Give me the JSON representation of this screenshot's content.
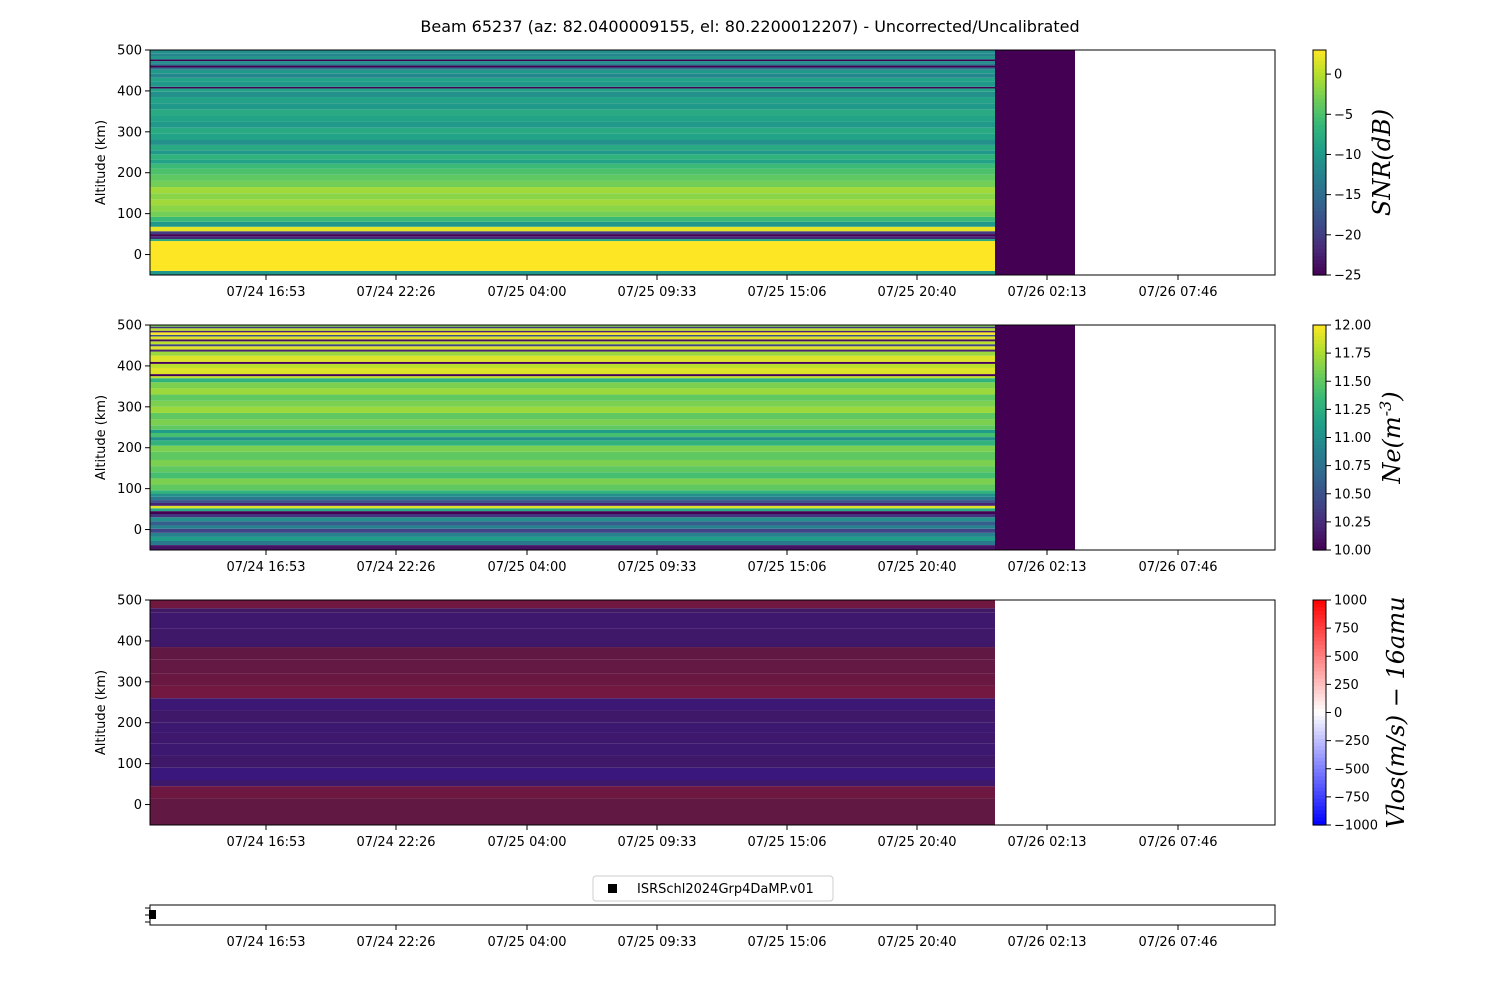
{
  "title": "Beam 65237 (az: 82.0400009155, el: 80.2200012207) - Uncorrected/Uncalibrated",
  "x_tick_labels": [
    "07/24 16:53",
    "07/24 22:26",
    "07/25 04:00",
    "07/25 09:33",
    "07/25 15:06",
    "07/25 20:40",
    "07/26 02:13",
    "07/26 07:46"
  ],
  "chart_data": [
    {
      "type": "heatmap",
      "name": "snr-panel",
      "ylabel": "Altitude (km)",
      "ylim": [
        -50,
        500
      ],
      "y_ticks": [
        0,
        100,
        200,
        300,
        400,
        500
      ],
      "colorbar": {
        "label": "SNR(dB)",
        "label_math": true,
        "colormap": "viridis",
        "range": [
          -25,
          3
        ],
        "ticks": [
          0,
          -5,
          -10,
          -15,
          -20,
          -25
        ],
        "tick_labels": [
          "0",
          "−5",
          "−10",
          "−15",
          "−20",
          "−25"
        ]
      },
      "bands": [
        {
          "y": [
            -50,
            -40
          ],
          "v": -10
        },
        {
          "y": [
            -40,
            33
          ],
          "v": 3
        },
        {
          "y": [
            33,
            38
          ],
          "v": -8
        },
        {
          "y": [
            38,
            45
          ],
          "v": -22
        },
        {
          "y": [
            45,
            50
          ],
          "v": -25
        },
        {
          "y": [
            50,
            57
          ],
          "v": -20
        },
        {
          "y": [
            57,
            68
          ],
          "v": 2
        },
        {
          "y": [
            68,
            80
          ],
          "v": -10
        },
        {
          "y": [
            80,
            92
          ],
          "v": -6
        },
        {
          "y": [
            92,
            105
          ],
          "v": -3
        },
        {
          "y": [
            105,
            120
          ],
          "v": -2
        },
        {
          "y": [
            120,
            135
          ],
          "v": -1
        },
        {
          "y": [
            135,
            150
          ],
          "v": -2
        },
        {
          "y": [
            150,
            165
          ],
          "v": -1
        },
        {
          "y": [
            165,
            180
          ],
          "v": -3
        },
        {
          "y": [
            180,
            195
          ],
          "v": -4
        },
        {
          "y": [
            195,
            210
          ],
          "v": -5
        },
        {
          "y": [
            210,
            222
          ],
          "v": -6
        },
        {
          "y": [
            222,
            232
          ],
          "v": -9
        },
        {
          "y": [
            232,
            245
          ],
          "v": -7
        },
        {
          "y": [
            245,
            255
          ],
          "v": -10
        },
        {
          "y": [
            255,
            268
          ],
          "v": -8
        },
        {
          "y": [
            268,
            280
          ],
          "v": -11
        },
        {
          "y": [
            280,
            295
          ],
          "v": -9
        },
        {
          "y": [
            295,
            310
          ],
          "v": -8
        },
        {
          "y": [
            310,
            325
          ],
          "v": -10
        },
        {
          "y": [
            325,
            340
          ],
          "v": -9
        },
        {
          "y": [
            340,
            355
          ],
          "v": -8
        },
        {
          "y": [
            355,
            370
          ],
          "v": -10
        },
        {
          "y": [
            370,
            385
          ],
          "v": -9
        },
        {
          "y": [
            385,
            398
          ],
          "v": -11
        },
        {
          "y": [
            398,
            406
          ],
          "v": -9
        },
        {
          "y": [
            406,
            410
          ],
          "v": -25
        },
        {
          "y": [
            410,
            422
          ],
          "v": -10
        },
        {
          "y": [
            422,
            432
          ],
          "v": -9
        },
        {
          "y": [
            432,
            442
          ],
          "v": -12
        },
        {
          "y": [
            442,
            452
          ],
          "v": -10
        },
        {
          "y": [
            452,
            457
          ],
          "v": -14
        },
        {
          "y": [
            457,
            462
          ],
          "v": -25
        },
        {
          "y": [
            462,
            468
          ],
          "v": -13
        },
        {
          "y": [
            468,
            473
          ],
          "v": -11
        },
        {
          "y": [
            473,
            477
          ],
          "v": -25
        },
        {
          "y": [
            477,
            484
          ],
          "v": -10
        },
        {
          "y": [
            484,
            492
          ],
          "v": -12
        },
        {
          "y": [
            492,
            500
          ],
          "v": -11
        }
      ],
      "filler_value": -25
    },
    {
      "type": "heatmap",
      "name": "ne-panel",
      "ylabel": "Altitude (km)",
      "ylim": [
        -50,
        500
      ],
      "y_ticks": [
        0,
        100,
        200,
        300,
        400,
        500
      ],
      "colorbar": {
        "label": "Ne(m^{-3})",
        "label_math": true,
        "colormap": "viridis",
        "range": [
          10,
          12
        ],
        "ticks": [
          12,
          11.75,
          11.5,
          11.25,
          11,
          10.75,
          10.5,
          10.25,
          10
        ],
        "tick_labels": [
          "12.00",
          "11.75",
          "11.50",
          "11.25",
          "11.00",
          "10.75",
          "10.50",
          "10.25",
          "10.00"
        ]
      },
      "bands": [
        {
          "y": [
            -50,
            -38
          ],
          "v": 10.1
        },
        {
          "y": [
            -38,
            -28
          ],
          "v": 10.8
        },
        {
          "y": [
            -28,
            -18
          ],
          "v": 11.1
        },
        {
          "y": [
            -18,
            -8
          ],
          "v": 10.9
        },
        {
          "y": [
            -8,
            2
          ],
          "v": 10.4
        },
        {
          "y": [
            2,
            10
          ],
          "v": 10.9
        },
        {
          "y": [
            10,
            20
          ],
          "v": 10.6
        },
        {
          "y": [
            20,
            30
          ],
          "v": 11.0
        },
        {
          "y": [
            30,
            38
          ],
          "v": 10.3
        },
        {
          "y": [
            38,
            45
          ],
          "v": 10.0
        },
        {
          "y": [
            45,
            52
          ],
          "v": 11.2
        },
        {
          "y": [
            52,
            58
          ],
          "v": 11.9
        },
        {
          "y": [
            58,
            65
          ],
          "v": 10.2
        },
        {
          "y": [
            65,
            72
          ],
          "v": 10.5
        },
        {
          "y": [
            72,
            80
          ],
          "v": 10.8
        },
        {
          "y": [
            80,
            88
          ],
          "v": 11.0
        },
        {
          "y": [
            88,
            96
          ],
          "v": 11.3
        },
        {
          "y": [
            96,
            110
          ],
          "v": 11.5
        },
        {
          "y": [
            110,
            125
          ],
          "v": 11.6
        },
        {
          "y": [
            125,
            140
          ],
          "v": 11.4
        },
        {
          "y": [
            140,
            155
          ],
          "v": 11.5
        },
        {
          "y": [
            155,
            170
          ],
          "v": 11.6
        },
        {
          "y": [
            170,
            190
          ],
          "v": 11.5
        },
        {
          "y": [
            190,
            205
          ],
          "v": 11.6
        },
        {
          "y": [
            205,
            218
          ],
          "v": 11.3
        },
        {
          "y": [
            218,
            226
          ],
          "v": 11.0
        },
        {
          "y": [
            226,
            236
          ],
          "v": 11.4
        },
        {
          "y": [
            236,
            244
          ],
          "v": 11.1
        },
        {
          "y": [
            244,
            255
          ],
          "v": 11.5
        },
        {
          "y": [
            255,
            270
          ],
          "v": 11.6
        },
        {
          "y": [
            270,
            285
          ],
          "v": 11.5
        },
        {
          "y": [
            285,
            300
          ],
          "v": 11.7
        },
        {
          "y": [
            300,
            315
          ],
          "v": 11.6
        },
        {
          "y": [
            315,
            330
          ],
          "v": 11.5
        },
        {
          "y": [
            330,
            345
          ],
          "v": 11.7
        },
        {
          "y": [
            345,
            360
          ],
          "v": 11.6
        },
        {
          "y": [
            360,
            370
          ],
          "v": 11.3
        },
        {
          "y": [
            370,
            375
          ],
          "v": 11.8
        },
        {
          "y": [
            375,
            380
          ],
          "v": 10.0
        },
        {
          "y": [
            380,
            395
          ],
          "v": 11.9
        },
        {
          "y": [
            395,
            405
          ],
          "v": 11.8
        },
        {
          "y": [
            405,
            410
          ],
          "v": 10.0
        },
        {
          "y": [
            410,
            425
          ],
          "v": 11.9
        },
        {
          "y": [
            425,
            435
          ],
          "v": 11.7
        },
        {
          "y": [
            435,
            440
          ],
          "v": 10.2
        },
        {
          "y": [
            440,
            448
          ],
          "v": 11.9
        },
        {
          "y": [
            448,
            453
          ],
          "v": 10.4
        },
        {
          "y": [
            453,
            460
          ],
          "v": 11.8
        },
        {
          "y": [
            460,
            465
          ],
          "v": 10.1
        },
        {
          "y": [
            465,
            472
          ],
          "v": 11.9
        },
        {
          "y": [
            472,
            476
          ],
          "v": 10.5
        },
        {
          "y": [
            476,
            482
          ],
          "v": 12.0
        },
        {
          "y": [
            482,
            486
          ],
          "v": 10.2
        },
        {
          "y": [
            486,
            492
          ],
          "v": 11.8
        },
        {
          "y": [
            492,
            496
          ],
          "v": 10.3
        },
        {
          "y": [
            496,
            500
          ],
          "v": 11.6
        }
      ],
      "filler_value": 10
    },
    {
      "type": "heatmap",
      "name": "vlos-panel",
      "ylabel": "Altitude (km)",
      "ylim": [
        -50,
        500
      ],
      "y_ticks": [
        0,
        100,
        200,
        300,
        400,
        500
      ],
      "colorbar": {
        "label": "Vlos(m/s) - 16amu",
        "label_math": true,
        "colormap": "bwr",
        "range": [
          -1000,
          1000
        ],
        "ticks": [
          1000,
          750,
          500,
          250,
          0,
          -250,
          -500,
          -750,
          -1000
        ],
        "tick_labels": [
          "1000",
          "750",
          "500",
          "250",
          "0",
          "−250",
          "−500",
          "−750",
          "−1000"
        ]
      },
      "bands": [
        {
          "y": [
            -50,
            15
          ],
          "v": 40
        },
        {
          "y": [
            15,
            45
          ],
          "v": 120
        },
        {
          "y": [
            45,
            60
          ],
          "v": -70
        },
        {
          "y": [
            60,
            90
          ],
          "v": -190
        },
        {
          "y": [
            90,
            120
          ],
          "v": -60
        },
        {
          "y": [
            120,
            150
          ],
          "v": -110
        },
        {
          "y": [
            150,
            175
          ],
          "v": -80
        },
        {
          "y": [
            175,
            200
          ],
          "v": -110
        },
        {
          "y": [
            200,
            230
          ],
          "v": -60
        },
        {
          "y": [
            230,
            260
          ],
          "v": -130
        },
        {
          "y": [
            260,
            290
          ],
          "v": 150
        },
        {
          "y": [
            290,
            320
          ],
          "v": 90
        },
        {
          "y": [
            320,
            355
          ],
          "v": 60
        },
        {
          "y": [
            355,
            385
          ],
          "v": 40
        },
        {
          "y": [
            385,
            430
          ],
          "v": -60
        },
        {
          "y": [
            430,
            470
          ],
          "v": -80
        },
        {
          "y": [
            470,
            480
          ],
          "v": -30
        },
        {
          "y": [
            480,
            500
          ],
          "v": 140
        }
      ],
      "filler_value": null
    }
  ],
  "legend": {
    "entries": [
      "ISRSchl2024Grp4DaMP.v01"
    ]
  }
}
